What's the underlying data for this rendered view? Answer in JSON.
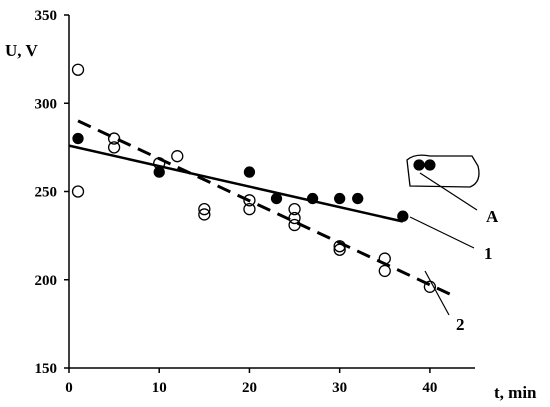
{
  "chart_data": {
    "type": "scatter",
    "title": "",
    "xlabel": "t, min",
    "ylabel": "U, V",
    "xlim": [
      0,
      45
    ],
    "ylim": [
      150,
      350
    ],
    "x_ticks": [
      0,
      10,
      20,
      30,
      40
    ],
    "y_ticks": [
      150,
      200,
      250,
      300,
      350
    ],
    "grid": false,
    "legend": "none",
    "series": [
      {
        "marker": "filled-circle",
        "color": "#000000",
        "points": [
          [
            1,
            280
          ],
          [
            10,
            261
          ],
          [
            20,
            261
          ],
          [
            23,
            246
          ],
          [
            27,
            246
          ],
          [
            30,
            246
          ],
          [
            32,
            246
          ],
          [
            37,
            236
          ],
          [
            38.8,
            265
          ],
          [
            40,
            265
          ]
        ]
      },
      {
        "marker": "open-circle",
        "color": "#000000",
        "points": [
          [
            1,
            319
          ],
          [
            1,
            250
          ],
          [
            5,
            280
          ],
          [
            5,
            275
          ],
          [
            10,
            266
          ],
          [
            12,
            270
          ],
          [
            15,
            240
          ],
          [
            15,
            237
          ],
          [
            20,
            245
          ],
          [
            20,
            240
          ],
          [
            25,
            240
          ],
          [
            25,
            235
          ],
          [
            25,
            231
          ],
          [
            30,
            219
          ],
          [
            30,
            217
          ],
          [
            35,
            212
          ],
          [
            35,
            205
          ],
          [
            40,
            196
          ]
        ]
      }
    ],
    "fits": [
      {
        "label": "1",
        "style": "solid",
        "from": [
          0,
          276
        ],
        "to": [
          37,
          233
        ]
      },
      {
        "label": "2",
        "style": "dashed",
        "from": [
          1,
          290
        ],
        "to": [
          43,
          190
        ]
      }
    ],
    "annotations": [
      {
        "text": "A"
      },
      {
        "text": "1"
      },
      {
        "text": "2"
      }
    ]
  }
}
